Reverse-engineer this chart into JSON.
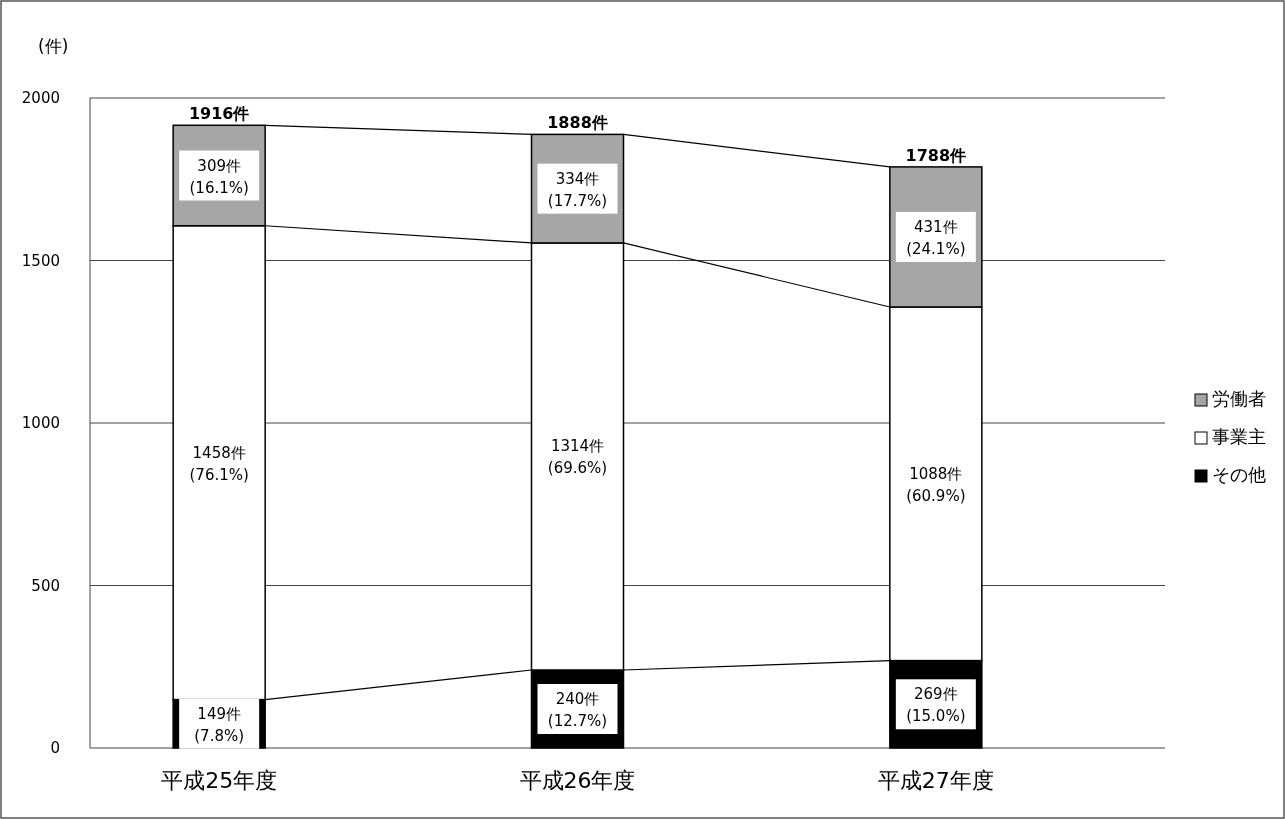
{
  "chart_data": {
    "type": "bar",
    "stacked": true,
    "ylabel": "(件)",
    "categories": [
      "平成25年度",
      "平成26年度",
      "平成27年度"
    ],
    "series": [
      {
        "name": "その他",
        "color": "#000000",
        "values": [
          149,
          240,
          269
        ],
        "value_labels": [
          "149件 (7.8%)",
          "240件 (12.7%)",
          "269件 (15.0%)"
        ]
      },
      {
        "name": "事業主",
        "color": "#ffffff",
        "values": [
          1458,
          1314,
          1088
        ],
        "value_labels": [
          "1458件 (76.1%)",
          "1314件 (69.6%)",
          "1088件 (60.9%)"
        ]
      },
      {
        "name": "労働者",
        "color": "#a6a6a6",
        "values": [
          309,
          334,
          431
        ],
        "value_labels": [
          "309件 (16.1%)",
          "334件 (17.7%)",
          "431件 (24.1%)"
        ]
      }
    ],
    "totals": [
      "1916件",
      "1888件",
      "1788件"
    ],
    "ylim": [
      0,
      2000
    ],
    "yticks": [
      0,
      500,
      1000,
      1500,
      2000
    ],
    "grid": "y",
    "legend": "right"
  }
}
